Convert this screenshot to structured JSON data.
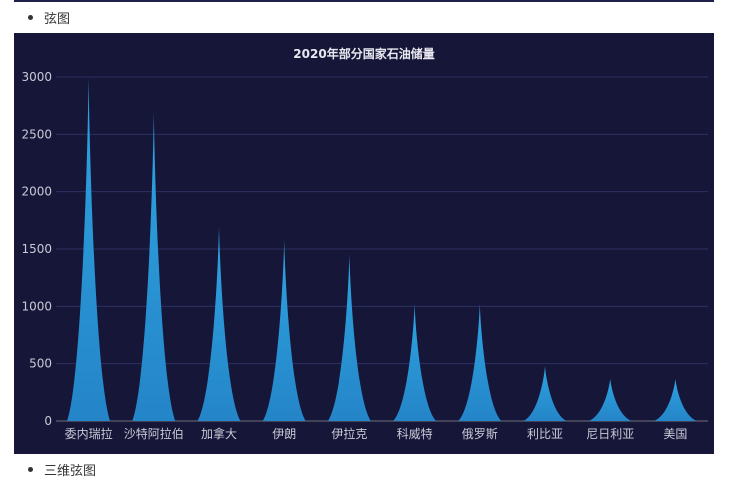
{
  "sections": [
    {
      "label": "弦图"
    },
    {
      "label": "三维弦图"
    }
  ],
  "colors": {
    "panel_bg": "#161639",
    "grid": "#2e3060",
    "bar_top": "#2ea3e0",
    "bar_bottom": "#2485c8"
  },
  "chart_data": {
    "type": "bar",
    "title": "2020年部分国家石油储量",
    "categories": [
      "委内瑞拉",
      "沙特阿拉伯",
      "加拿大",
      "伊朗",
      "伊拉克",
      "科威特",
      "俄罗斯",
      "利比亚",
      "尼日利亚",
      "美国"
    ],
    "values": [
      3000,
      2700,
      1700,
      1580,
      1450,
      1020,
      1020,
      480,
      370,
      370
    ],
    "ylim": [
      0,
      3000
    ],
    "yticks": [
      0,
      500,
      1000,
      1500,
      2000,
      2500,
      3000
    ],
    "xlabel": "",
    "ylabel": "",
    "grid": true,
    "mark_shape": "pictorial-spike"
  }
}
